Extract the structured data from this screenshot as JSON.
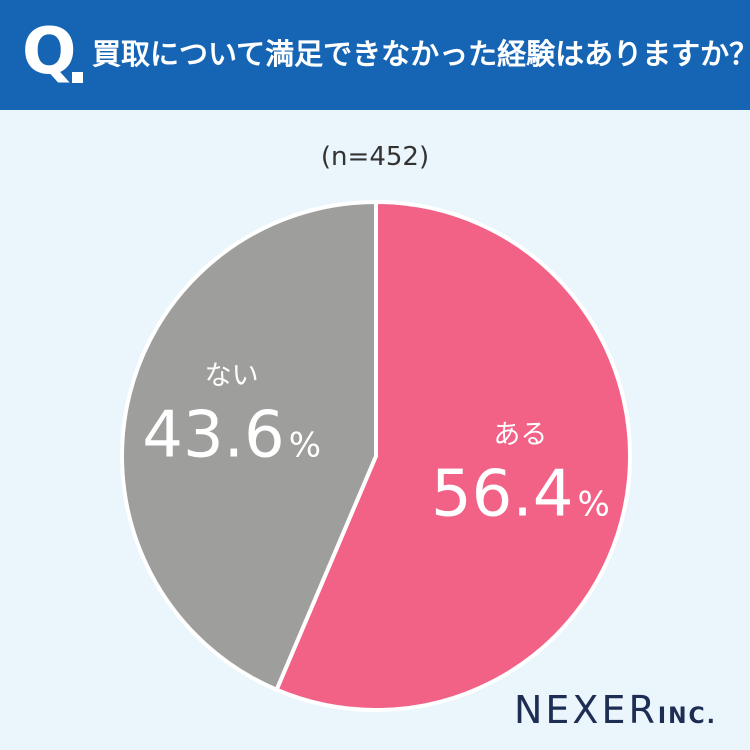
{
  "header": {
    "q_label": "Q",
    "question": "買取について満足できなかった経験はありますか？"
  },
  "sample_size": "(n=452)",
  "brand": {
    "name": "NEXER",
    "suffix": "INC."
  },
  "colors": {
    "header": "#1565b4",
    "aru": "#f26286",
    "nai": "#9e9e9c",
    "background": "#eaf6fc"
  },
  "chart_data": {
    "type": "pie",
    "start": "12 o'clock",
    "direction": "clockwise",
    "slices": [
      {
        "label": "ある",
        "value": 56.4,
        "value_text": "56.4",
        "unit": "%",
        "color": "#f26286"
      },
      {
        "label": "ない",
        "value": 43.6,
        "value_text": "43.6",
        "unit": "%",
        "color": "#9e9e9c"
      }
    ]
  }
}
